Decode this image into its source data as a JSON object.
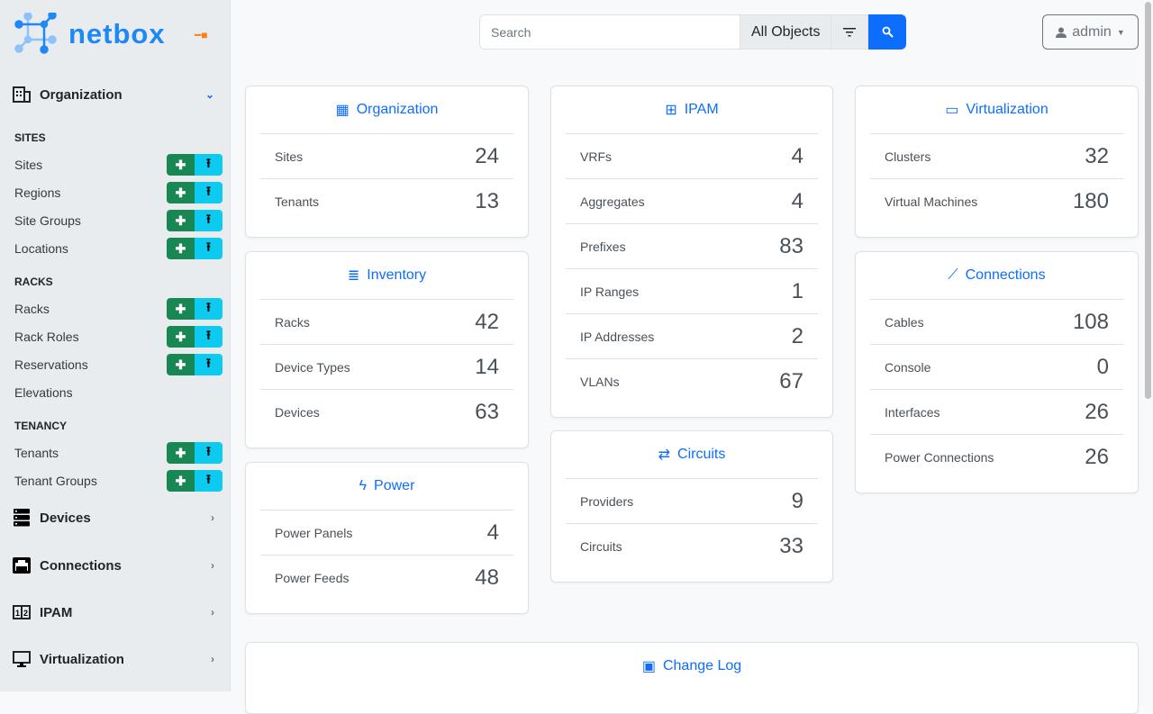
{
  "brand": {
    "name": "netbox",
    "accent": "#0d6efd"
  },
  "sidebar": {
    "org": {
      "label": "Organization"
    },
    "groups": [
      {
        "label": "SITES",
        "items": [
          {
            "label": "Sites",
            "actions": true
          },
          {
            "label": "Regions",
            "actions": true
          },
          {
            "label": "Site Groups",
            "actions": true
          },
          {
            "label": "Locations",
            "actions": true
          }
        ]
      },
      {
        "label": "RACKS",
        "items": [
          {
            "label": "Racks",
            "actions": true
          },
          {
            "label": "Rack Roles",
            "actions": true
          },
          {
            "label": "Reservations",
            "actions": true
          },
          {
            "label": "Elevations",
            "actions": false
          }
        ]
      },
      {
        "label": "TENANCY",
        "items": [
          {
            "label": "Tenants",
            "actions": true
          },
          {
            "label": "Tenant Groups",
            "actions": true
          }
        ]
      }
    ],
    "sections": [
      {
        "label": "Devices"
      },
      {
        "label": "Connections"
      },
      {
        "label": "IPAM"
      },
      {
        "label": "Virtualization"
      }
    ],
    "add_icon": "+",
    "import_icon": "upload-icon"
  },
  "search": {
    "placeholder": "Search",
    "value": "",
    "scope": "All Objects"
  },
  "user": {
    "label": "admin"
  },
  "cards": {
    "organization": {
      "title": "Organization",
      "rows": [
        {
          "label": "Sites",
          "value": "24"
        },
        {
          "label": "Tenants",
          "value": "13"
        }
      ]
    },
    "inventory": {
      "title": "Inventory",
      "rows": [
        {
          "label": "Racks",
          "value": "42"
        },
        {
          "label": "Device Types",
          "value": "14"
        },
        {
          "label": "Devices",
          "value": "63"
        }
      ]
    },
    "power": {
      "title": "Power",
      "rows": [
        {
          "label": "Power Panels",
          "value": "4"
        },
        {
          "label": "Power Feeds",
          "value": "48"
        }
      ]
    },
    "ipam": {
      "title": "IPAM",
      "rows": [
        {
          "label": "VRFs",
          "value": "4"
        },
        {
          "label": "Aggregates",
          "value": "4"
        },
        {
          "label": "Prefixes",
          "value": "83"
        },
        {
          "label": "IP Ranges",
          "value": "1"
        },
        {
          "label": "IP Addresses",
          "value": "2"
        },
        {
          "label": "VLANs",
          "value": "67"
        }
      ]
    },
    "circuits": {
      "title": "Circuits",
      "rows": [
        {
          "label": "Providers",
          "value": "9"
        },
        {
          "label": "Circuits",
          "value": "33"
        }
      ]
    },
    "virtualization": {
      "title": "Virtualization",
      "rows": [
        {
          "label": "Clusters",
          "value": "32"
        },
        {
          "label": "Virtual Machines",
          "value": "180"
        }
      ]
    },
    "connections": {
      "title": "Connections",
      "rows": [
        {
          "label": "Cables",
          "value": "108"
        },
        {
          "label": "Console",
          "value": "0"
        },
        {
          "label": "Interfaces",
          "value": "26"
        },
        {
          "label": "Power Connections",
          "value": "26"
        }
      ]
    },
    "changelog": {
      "title": "Change Log"
    }
  }
}
